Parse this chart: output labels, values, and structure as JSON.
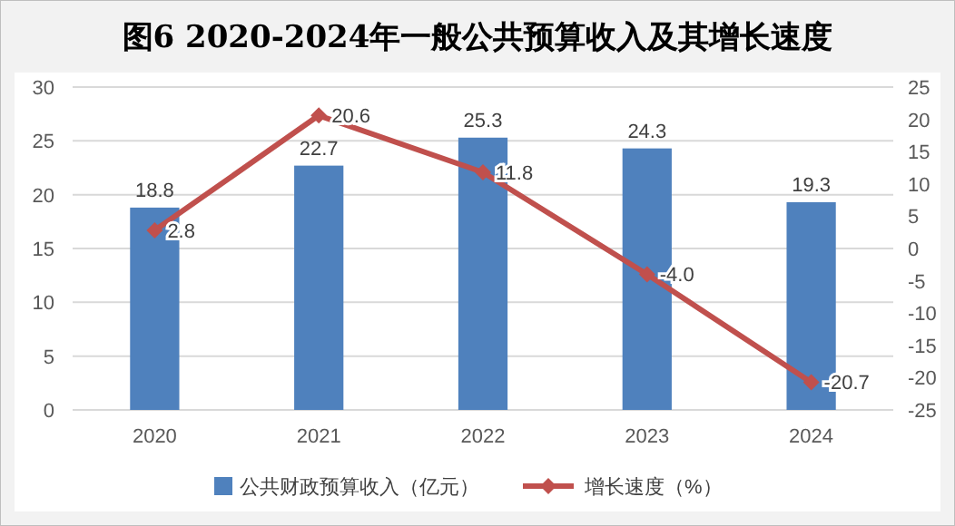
{
  "chart_data": {
    "type": "bar",
    "title": "图6  2020-2024年一般公共预算收入及其增长速度",
    "categories": [
      "2020",
      "2021",
      "2022",
      "2023",
      "2024"
    ],
    "series": [
      {
        "name": "公共财政预算收入（亿元）",
        "color": "#4f81bd",
        "values": [
          18.8,
          22.7,
          25.3,
          24.3,
          19.3
        ],
        "value_labels": [
          "18.8",
          "22.7",
          "25.3",
          "24.3",
          "19.3"
        ]
      },
      {
        "name": "增长速度（%）",
        "type": "line",
        "axis": "y2",
        "color": "#c0504d",
        "marker": "diamond",
        "values": [
          2.8,
          20.6,
          11.8,
          -4.0,
          -20.7
        ],
        "value_labels": [
          "2.8",
          "20.6",
          "11.8",
          "-4.0",
          "-20.7"
        ]
      }
    ],
    "ylim": [
      0,
      30
    ],
    "yticks": [
      0,
      5,
      10,
      15,
      20,
      25,
      30
    ],
    "y2lim": [
      -25,
      25
    ],
    "y2ticks": [
      -25,
      -20,
      -15,
      -10,
      -5,
      0,
      5,
      10,
      15,
      20,
      25
    ],
    "grid": "y",
    "legend": "bottom"
  }
}
